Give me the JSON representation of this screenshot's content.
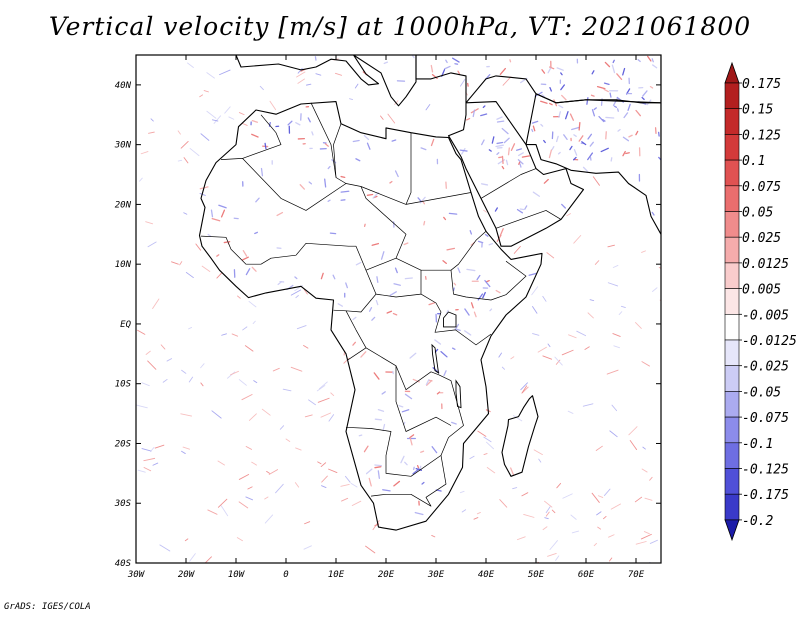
{
  "title": "Vertical velocity [m/s] at 1000hPa, VT: 2021061800",
  "credit": "GrADS: IGES/COLA",
  "map": {
    "projection": "latlon",
    "lon_range": [
      -30,
      75
    ],
    "lat_range": [
      -40,
      45
    ],
    "lon_ticks": [
      {
        "value": -30,
        "label": "30W"
      },
      {
        "value": -20,
        "label": "20W"
      },
      {
        "value": -10,
        "label": "10W"
      },
      {
        "value": 0,
        "label": "0"
      },
      {
        "value": 10,
        "label": "10E"
      },
      {
        "value": 20,
        "label": "20E"
      },
      {
        "value": 30,
        "label": "30E"
      },
      {
        "value": 40,
        "label": "40E"
      },
      {
        "value": 50,
        "label": "50E"
      },
      {
        "value": 60,
        "label": "60E"
      },
      {
        "value": 70,
        "label": "70E"
      }
    ],
    "lat_ticks": [
      {
        "value": 40,
        "label": "40N"
      },
      {
        "value": 30,
        "label": "30N"
      },
      {
        "value": 20,
        "label": "20N"
      },
      {
        "value": 10,
        "label": "10N"
      },
      {
        "value": 0,
        "label": "EQ"
      },
      {
        "value": -10,
        "label": "10S"
      },
      {
        "value": -20,
        "label": "20S"
      },
      {
        "value": -30,
        "label": "30S"
      },
      {
        "value": -40,
        "label": "40S"
      }
    ],
    "field": "vertical velocity",
    "units": "m/s"
  },
  "colorbar": {
    "orientation": "vertical",
    "levels": [
      {
        "label": "0.175",
        "color": "#b31f1f"
      },
      {
        "label": "0.15",
        "color": "#c42a2a"
      },
      {
        "label": "0.125",
        "color": "#d33a3a"
      },
      {
        "label": "0.1",
        "color": "#e05252"
      },
      {
        "label": "0.075",
        "color": "#ea6e6e"
      },
      {
        "label": "0.05",
        "color": "#f08c8c"
      },
      {
        "label": "0.025",
        "color": "#f5acac"
      },
      {
        "label": "0.0125",
        "color": "#f9cccc"
      },
      {
        "label": "0.005",
        "color": "#fce6e6"
      },
      {
        "label": "-0.005",
        "color": "#ffffff"
      },
      {
        "label": "-0.0125",
        "color": "#e6e6fa"
      },
      {
        "label": "-0.025",
        "color": "#ccccf5"
      },
      {
        "label": "-0.05",
        "color": "#ababf0"
      },
      {
        "label": "-0.075",
        "color": "#8c8ceb"
      },
      {
        "label": "-0.1",
        "color": "#6e6ee2"
      },
      {
        "label": "-0.125",
        "color": "#5050d8"
      },
      {
        "label": "-0.175",
        "color": "#3a3ac9"
      },
      {
        "label": "-0.2",
        "color": "#2828b8"
      }
    ],
    "extend_top_color": "#a01818",
    "extend_bottom_color": "#1c1ca8"
  }
}
